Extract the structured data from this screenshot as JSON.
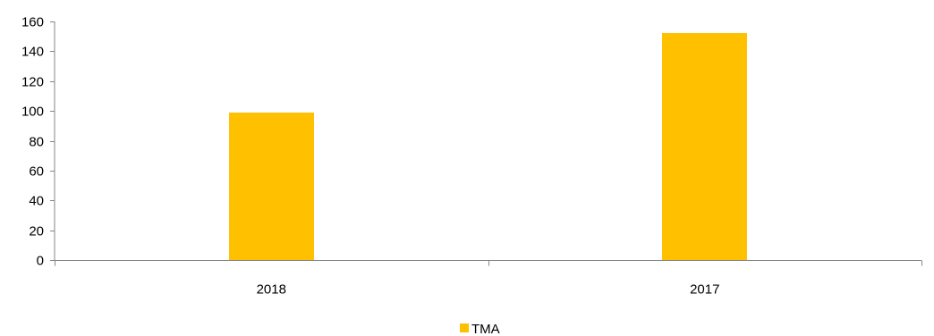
{
  "chart_data": {
    "type": "bar",
    "categories": [
      "2018",
      "2017"
    ],
    "series": [
      {
        "name": "TMA",
        "values": [
          99,
          152
        ],
        "color": "#FFC000"
      }
    ],
    "ylim": [
      0,
      160
    ],
    "yticks": [
      0,
      20,
      40,
      60,
      80,
      100,
      120,
      140,
      160
    ],
    "grid": false,
    "legend_position": "bottom"
  }
}
